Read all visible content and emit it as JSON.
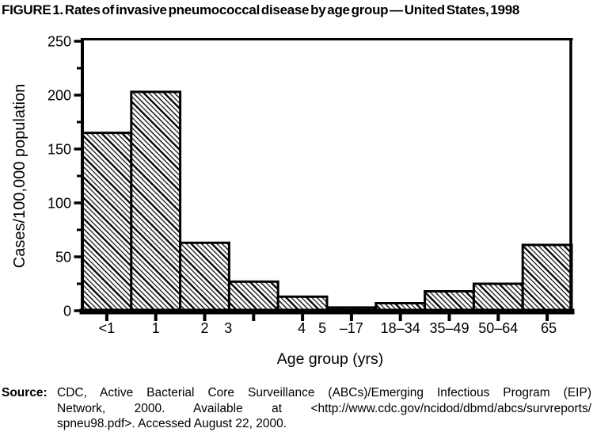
{
  "figure_title": "FIGURE 1. Rates of invasive pneumococcal disease by age group — United States, 1998",
  "chart_data": {
    "type": "bar",
    "title": "Rates of invasive pneumococcal disease by age group — United States, 1998",
    "categories": [
      "<1",
      "1",
      "2",
      "3",
      "4",
      "5–17",
      "18–34",
      "35–49",
      "50–64",
      "65"
    ],
    "values": [
      165,
      203,
      63,
      27,
      13,
      3,
      7,
      18,
      25,
      61
    ],
    "xlabel": "Age group (yrs)",
    "ylabel": "Cases/100,000 population",
    "ylim": [
      0,
      250
    ],
    "y_major_ticks": [
      0,
      50,
      100,
      150,
      200,
      250
    ],
    "y_minor_tick_step": 25,
    "grid": false,
    "legend": false,
    "bar_style": "black diagonal hatch on white, black outline, contiguous bars",
    "x_tick_labels_as_rendered": [
      {
        "text": "<1",
        "tick": 0,
        "dx": 0
      },
      {
        "text": "1",
        "tick": 1,
        "dx": 0
      },
      {
        "text": "2",
        "tick": 2,
        "dx": 0
      },
      {
        "text": "3",
        "tick": 3,
        "dx": -32
      },
      {
        "text": "4",
        "tick": 4,
        "dx": -1
      },
      {
        "text": "5",
        "tick": 4,
        "dx": 25
      },
      {
        "text": "–17",
        "tick": 5,
        "dx": 0
      },
      {
        "text": "18–34",
        "tick": 6,
        "dx": 0
      },
      {
        "text": "35–49",
        "tick": 7,
        "dx": 0
      },
      {
        "text": "50–64",
        "tick": 8,
        "dx": 0
      },
      {
        "text": "65",
        "tick": 9,
        "dx": 2
      }
    ],
    "colors": {
      "foreground": "#000000",
      "background": "#ffffff"
    }
  },
  "source": {
    "label": "Source:",
    "lines": [
      "CDC, Active Bacterial Core Surveillance (ABCs)/Emerging Infectious Program (EIP)",
      "Network, 2000. Available at <http://www.cdc.gov/ncidod/dbmd/abcs/survreports/",
      "spneu98.pdf>. Accessed August 22, 2000."
    ]
  }
}
